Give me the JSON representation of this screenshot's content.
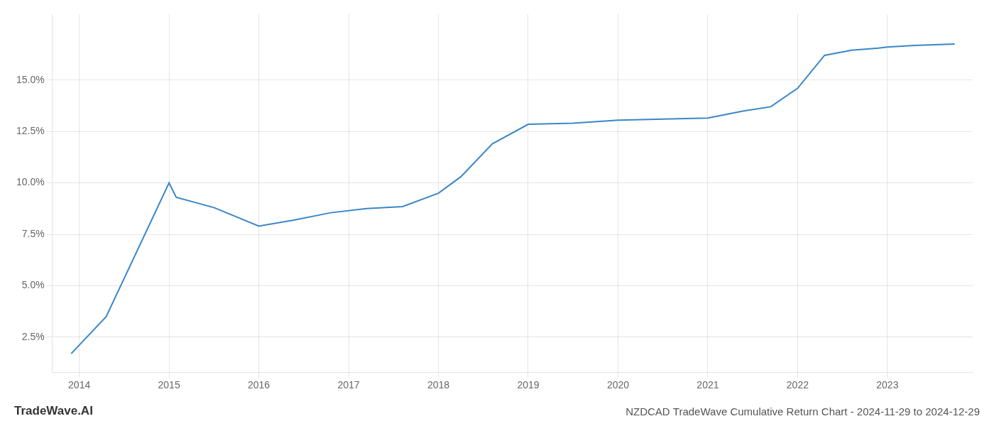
{
  "chart_data": {
    "type": "line",
    "title": "NZDCAD TradeWave Cumulative Return Chart - 2024-11-29 to 2024-12-29",
    "annotations": [
      "TradeWave.AI"
    ],
    "x": [
      2013.91,
      2014.3,
      2015.0,
      2015.08,
      2015.5,
      2016.0,
      2016.4,
      2016.8,
      2017.2,
      2017.6,
      2018.0,
      2018.25,
      2018.6,
      2019.0,
      2019.5,
      2020.0,
      2020.5,
      2021.0,
      2021.4,
      2021.7,
      2022.0,
      2022.3,
      2022.6,
      2022.9,
      2023.0,
      2023.3,
      2023.75
    ],
    "values": [
      1.7,
      3.5,
      10.0,
      9.3,
      8.8,
      7.9,
      8.2,
      8.55,
      8.75,
      8.85,
      9.5,
      10.3,
      11.9,
      12.85,
      12.9,
      13.05,
      13.1,
      13.15,
      13.5,
      13.7,
      14.6,
      16.2,
      16.45,
      16.55,
      16.6,
      16.68,
      16.75
    ],
    "color": "#3a86c8",
    "xlim": [
      2013.7,
      2023.95
    ],
    "ylim": [
      0.8,
      18.2
    ],
    "xticks": [
      2014,
      2015,
      2016,
      2017,
      2018,
      2019,
      2020,
      2021,
      2022,
      2023
    ],
    "yticks": [
      {
        "value": 2.5,
        "label": "2.5%"
      },
      {
        "value": 5.0,
        "label": "5.0%"
      },
      {
        "value": 7.5,
        "label": "7.5%"
      },
      {
        "value": 10.0,
        "label": "10.0%"
      },
      {
        "value": 12.5,
        "label": "12.5%"
      },
      {
        "value": 15.0,
        "label": "15.0%"
      }
    ],
    "grid": true
  }
}
